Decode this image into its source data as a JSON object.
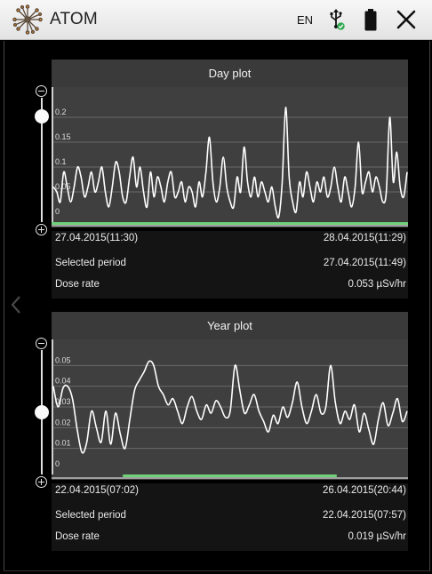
{
  "app": {
    "title": "ATOM",
    "language": "EN",
    "icons": [
      "atom-logo-icon",
      "usb-connected-icon",
      "battery-icon",
      "close-icon",
      "chevron-left-icon"
    ]
  },
  "colors": {
    "accent_green": "#6fd17a",
    "plot_background": "#3f3f3f",
    "line": "#ffffff"
  },
  "day_plot": {
    "title": "Day plot",
    "start_label": "27.04.2015(11:30)",
    "end_label": "28.04.2015(11:29)",
    "selected_period_label": "Selected period",
    "selected_period_value": "27.04.2015(11:49)",
    "dose_rate_label": "Dose rate",
    "dose_rate_value": "0.053 µSv/hr",
    "zoom_level": 0.85
  },
  "year_plot": {
    "title": "Year plot",
    "start_label": "22.04.2015(07:02)",
    "end_label": "26.04.2015(20:44)",
    "selected_period_label": "Selected period",
    "selected_period_value": "22.04.2015(07:57)",
    "dose_rate_label": "Dose rate",
    "dose_rate_value": "0.019 µSv/hr",
    "zoom_level": 0.5
  },
  "chart_data": [
    {
      "type": "line",
      "title": "Day plot",
      "ylim": [
        0,
        0.25
      ],
      "yticks": [
        "0",
        "0.05",
        "0.1",
        "0.15",
        "0.2"
      ],
      "grid": true,
      "highlight_range": [
        0,
        1
      ],
      "values": [
        0.06,
        0.05,
        0.03,
        0.09,
        0.06,
        0.03,
        0.06,
        0.1,
        0.08,
        0.04,
        0.06,
        0.09,
        0.05,
        0.07,
        0.1,
        0.05,
        0.02,
        0.06,
        0.11,
        0.09,
        0.04,
        0.03,
        0.08,
        0.12,
        0.06,
        0.1,
        0.05,
        0.02,
        0.09,
        0.04,
        0.08,
        0.06,
        0.03,
        0.07,
        0.09,
        0.04,
        0.05,
        0.07,
        0.03,
        0.06,
        0.05,
        0.02,
        0.07,
        0.04,
        0.09,
        0.16,
        0.07,
        0.03,
        0.06,
        0.12,
        0.06,
        0.03,
        0.02,
        0.08,
        0.05,
        0.14,
        0.07,
        0.04,
        0.08,
        0.04,
        0.07,
        0.05,
        0.03,
        0.06,
        0.02,
        0.0,
        0.07,
        0.22,
        0.08,
        0.03,
        0.01,
        0.07,
        0.04,
        0.09,
        0.06,
        0.03,
        0.07,
        0.05,
        0.08,
        0.04,
        0.06,
        0.1,
        0.06,
        0.03,
        0.08,
        0.05,
        0.02,
        0.06,
        0.15,
        0.05,
        0.07,
        0.09,
        0.05,
        0.08,
        0.06,
        0.03,
        0.05,
        0.2,
        0.07,
        0.13,
        0.06,
        0.04,
        0.09
      ]
    },
    {
      "type": "line",
      "title": "Year plot",
      "ylim": [
        0,
        0.06
      ],
      "yticks": [
        "0",
        "0.01",
        "0.02",
        "0.03",
        "0.04",
        "0.05"
      ],
      "grid": true,
      "highlight_range": [
        0.2,
        0.8
      ],
      "values": [
        0.04,
        0.03,
        0.039,
        0.04,
        0.034,
        0.019,
        0.008,
        0.013,
        0.028,
        0.02,
        0.013,
        0.028,
        0.012,
        0.027,
        0.017,
        0.01,
        0.024,
        0.038,
        0.043,
        0.047,
        0.052,
        0.05,
        0.04,
        0.036,
        0.031,
        0.034,
        0.028,
        0.022,
        0.03,
        0.035,
        0.028,
        0.024,
        0.031,
        0.027,
        0.033,
        0.03,
        0.025,
        0.028,
        0.05,
        0.038,
        0.027,
        0.031,
        0.036,
        0.028,
        0.023,
        0.018,
        0.026,
        0.022,
        0.03,
        0.025,
        0.032,
        0.042,
        0.03,
        0.022,
        0.028,
        0.036,
        0.027,
        0.03,
        0.05,
        0.032,
        0.022,
        0.028,
        0.024,
        0.031,
        0.018,
        0.027,
        0.019,
        0.012,
        0.024,
        0.032,
        0.021,
        0.027,
        0.034,
        0.023,
        0.028
      ]
    }
  ]
}
